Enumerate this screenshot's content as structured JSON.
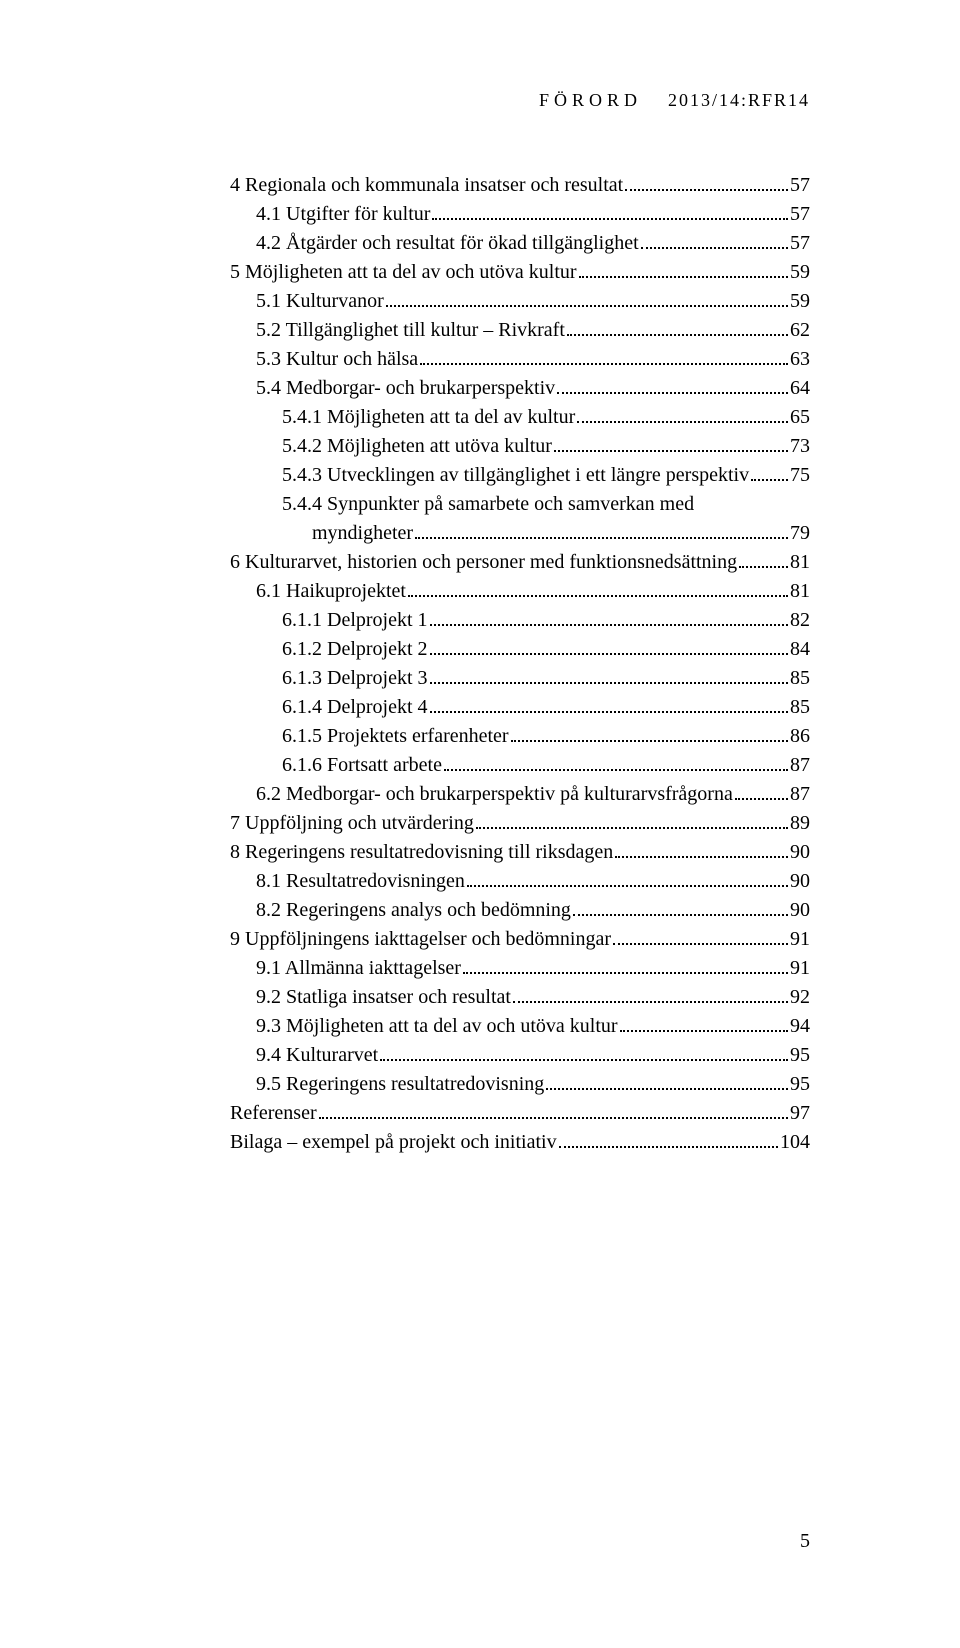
{
  "header": {
    "label": "FÖRORD",
    "ref": "2013/14:RFR14"
  },
  "toc": [
    {
      "indent": 0,
      "text": "4 Regionala och kommunala insatser och resultat",
      "page": "57"
    },
    {
      "indent": 1,
      "text": "4.1 Utgifter för kultur",
      "page": "57"
    },
    {
      "indent": 1,
      "text": "4.2 Åtgärder och resultat för ökad tillgänglighet",
      "page": "57"
    },
    {
      "indent": 0,
      "text": "5 Möjligheten att ta del av och utöva kultur",
      "page": "59"
    },
    {
      "indent": 1,
      "text": "5.1 Kulturvanor",
      "page": "59"
    },
    {
      "indent": 1,
      "text": "5.2 Tillgänglighet till kultur – Rivkraft",
      "page": "62"
    },
    {
      "indent": 1,
      "text": "5.3 Kultur och hälsa",
      "page": "63"
    },
    {
      "indent": 1,
      "text": "5.4 Medborgar- och brukarperspektiv",
      "page": "64"
    },
    {
      "indent": 2,
      "text": "5.4.1 Möjligheten att ta del av kultur",
      "page": "65"
    },
    {
      "indent": 2,
      "text": "5.4.2 Möjligheten att utöva kultur",
      "page": "73"
    },
    {
      "indent": 2,
      "text": "5.4.3 Utvecklingen av tillgänglighet i ett längre perspektiv",
      "page": "75"
    },
    {
      "indent": 2,
      "text": "5.4.4 Synpunkter på samarbete och samverkan med",
      "page": "",
      "nowrap": true
    },
    {
      "indent": "2-wrap",
      "text": "myndigheter",
      "page": "79"
    },
    {
      "indent": 0,
      "text": "6 Kulturarvet, historien och personer med funktionsnedsättning",
      "page": "81"
    },
    {
      "indent": 1,
      "text": "6.1 Haikuprojektet",
      "page": "81"
    },
    {
      "indent": 2,
      "text": "6.1.1 Delprojekt 1",
      "page": "82"
    },
    {
      "indent": 2,
      "text": "6.1.2 Delprojekt 2",
      "page": "84"
    },
    {
      "indent": 2,
      "text": "6.1.3 Delprojekt 3",
      "page": "85"
    },
    {
      "indent": 2,
      "text": "6.1.4 Delprojekt 4",
      "page": "85"
    },
    {
      "indent": 2,
      "text": "6.1.5 Projektets erfarenheter",
      "page": "86"
    },
    {
      "indent": 2,
      "text": "6.1.6 Fortsatt arbete",
      "page": "87"
    },
    {
      "indent": 1,
      "text": "6.2 Medborgar- och brukarperspektiv på kulturarvsfrågorna",
      "page": "87"
    },
    {
      "indent": 0,
      "text": "7 Uppföljning och utvärdering",
      "page": "89"
    },
    {
      "indent": 0,
      "text": "8 Regeringens resultatredovisning till riksdagen",
      "page": "90"
    },
    {
      "indent": 1,
      "text": "8.1 Resultatredovisningen",
      "page": "90"
    },
    {
      "indent": 1,
      "text": "8.2 Regeringens analys och bedömning",
      "page": "90"
    },
    {
      "indent": 0,
      "text": "9 Uppföljningens iakttagelser och bedömningar",
      "page": "91"
    },
    {
      "indent": 1,
      "text": "9.1 Allmänna iakttagelser",
      "page": "91"
    },
    {
      "indent": 1,
      "text": "9.2 Statliga insatser och resultat",
      "page": "92"
    },
    {
      "indent": 1,
      "text": "9.3 Möjligheten att ta del av och utöva kultur",
      "page": "94"
    },
    {
      "indent": 1,
      "text": "9.4 Kulturarvet",
      "page": "95"
    },
    {
      "indent": 1,
      "text": "9.5 Regeringens resultatredovisning",
      "page": "95"
    },
    {
      "indent": 0,
      "text": "Referenser",
      "page": "97"
    },
    {
      "indent": 0,
      "text": "Bilaga – exempel på projekt och initiativ",
      "page": "104"
    }
  ],
  "page_number": "5"
}
